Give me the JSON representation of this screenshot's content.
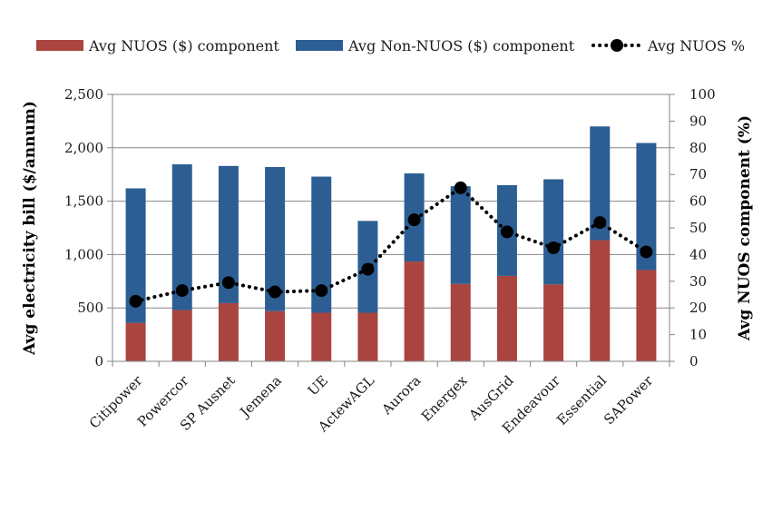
{
  "chart_data": {
    "type": "bar",
    "stacked": true,
    "categories": [
      "Citipower",
      "Powercor",
      "SP Ausnet",
      "Jemena",
      "UE",
      "ActewAGL",
      "Aurora",
      "Energex",
      "AusGrid",
      "Endeavour",
      "Essential",
      "SAPower"
    ],
    "series": [
      {
        "name": "Avg NUOS ($) component",
        "axis": "left",
        "kind": "bar",
        "color": "#a9443e",
        "values": [
          360,
          480,
          545,
          470,
          455,
          455,
          935,
          725,
          800,
          720,
          1135,
          855
        ]
      },
      {
        "name": "Avg Non-NUOS ($) component",
        "axis": "left",
        "kind": "bar",
        "color": "#2c5e94",
        "values": [
          1260,
          1365,
          1285,
          1350,
          1275,
          860,
          825,
          915,
          850,
          985,
          1065,
          1190
        ]
      },
      {
        "name": "Avg NUOS %",
        "axis": "right",
        "kind": "line",
        "style": "dotted",
        "color": "#000000",
        "values": [
          22.5,
          26.5,
          29.5,
          26,
          26.5,
          34.5,
          53,
          65,
          48.5,
          42.5,
          52,
          41
        ]
      }
    ],
    "ylabel": "Avg electricity bill ($/annum)",
    "y2label": "Avg NUOS component (%)",
    "ylim": [
      0,
      2500
    ],
    "y2lim": [
      0,
      100
    ],
    "yticks": [
      "0",
      "500",
      "1,000",
      "1,500",
      "2,000",
      "2,500"
    ],
    "y2ticks": [
      "0",
      "10",
      "20",
      "30",
      "40",
      "50",
      "60",
      "70",
      "80",
      "90",
      "100"
    ],
    "grid": true,
    "legend": "top"
  }
}
